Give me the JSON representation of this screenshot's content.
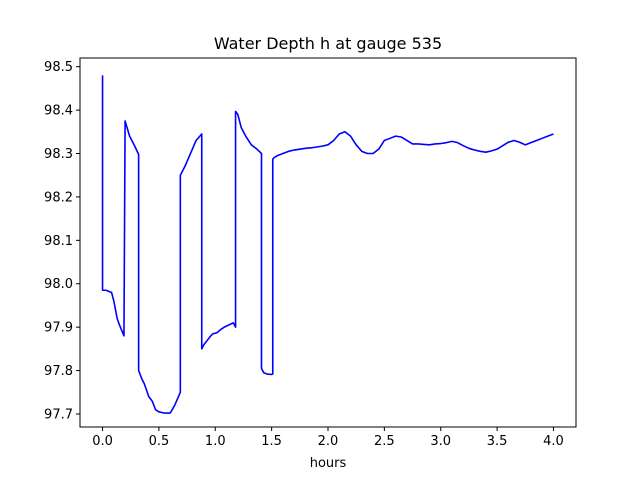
{
  "chart_data": {
    "type": "line",
    "title": "Water Depth h at gauge 535",
    "xlabel": "hours",
    "ylabel": "",
    "xlim": [
      -0.2,
      4.2
    ],
    "ylim": [
      97.67,
      98.52
    ],
    "xticks": [
      0.0,
      0.5,
      1.0,
      1.5,
      2.0,
      2.5,
      3.0,
      3.5,
      4.0
    ],
    "xtick_labels": [
      "0.0",
      "0.5",
      "1.0",
      "1.5",
      "2.0",
      "2.5",
      "3.0",
      "3.5",
      "4.0"
    ],
    "yticks": [
      97.7,
      97.8,
      97.9,
      98.0,
      98.1,
      98.2,
      98.3,
      98.4,
      98.5
    ],
    "ytick_labels": [
      "97.7",
      "97.8",
      "97.9",
      "98.0",
      "98.1",
      "98.2",
      "98.3",
      "98.4",
      "98.5"
    ],
    "grid": false,
    "line_color": "#0000ff",
    "series": [
      {
        "name": "h",
        "x": [
          0.0,
          0.0,
          0.03,
          0.08,
          0.1,
          0.13,
          0.15,
          0.19,
          0.2,
          0.2,
          0.24,
          0.28,
          0.32,
          0.32,
          0.35,
          0.37,
          0.39,
          0.41,
          0.44,
          0.47,
          0.5,
          0.55,
          0.6,
          0.64,
          0.69,
          0.69,
          0.69,
          0.73,
          0.78,
          0.83,
          0.88,
          0.88,
          0.88,
          0.9,
          0.93,
          0.96,
          0.98,
          1.0,
          1.02,
          1.05,
          1.08,
          1.12,
          1.16,
          1.17,
          1.18,
          1.18,
          1.2,
          1.23,
          1.27,
          1.32,
          1.37,
          1.41,
          1.41,
          1.41,
          1.43,
          1.46,
          1.5,
          1.51,
          1.51,
          1.52,
          1.55,
          1.6,
          1.65,
          1.7,
          1.75,
          1.8,
          1.85,
          1.9,
          1.95,
          2.0,
          2.05,
          2.1,
          2.15,
          2.2,
          2.25,
          2.3,
          2.35,
          2.4,
          2.45,
          2.5,
          2.55,
          2.6,
          2.65,
          2.7,
          2.75,
          2.8,
          2.85,
          2.9,
          2.95,
          3.0,
          3.05,
          3.1,
          3.15,
          3.2,
          3.25,
          3.3,
          3.35,
          3.4,
          3.45,
          3.5,
          3.55,
          3.6,
          3.65,
          3.7,
          3.75,
          3.8,
          3.85,
          3.9,
          3.95,
          4.0
        ],
        "y": [
          98.48,
          97.985,
          97.985,
          97.98,
          97.96,
          97.92,
          97.905,
          97.88,
          98.375,
          98.375,
          98.34,
          98.32,
          98.298,
          97.8,
          97.78,
          97.77,
          97.755,
          97.74,
          97.73,
          97.71,
          97.705,
          97.702,
          97.702,
          97.72,
          97.75,
          97.75,
          98.25,
          98.27,
          98.3,
          98.33,
          98.345,
          98.345,
          97.85,
          97.86,
          97.87,
          97.88,
          97.885,
          97.886,
          97.888,
          97.895,
          97.9,
          97.905,
          97.91,
          97.905,
          97.9,
          98.397,
          98.39,
          98.36,
          98.34,
          98.32,
          98.31,
          98.3,
          98.3,
          97.805,
          97.795,
          97.792,
          97.791,
          97.792,
          98.287,
          98.29,
          98.295,
          98.3,
          98.305,
          98.308,
          98.31,
          98.312,
          98.313,
          98.315,
          98.317,
          98.32,
          98.33,
          98.345,
          98.35,
          98.34,
          98.32,
          98.305,
          98.3,
          98.3,
          98.31,
          98.33,
          98.335,
          98.34,
          98.338,
          98.33,
          98.322,
          98.322,
          98.321,
          98.32,
          98.322,
          98.323,
          98.325,
          98.328,
          98.325,
          98.318,
          98.312,
          98.308,
          98.305,
          98.303,
          98.306,
          98.31,
          98.318,
          98.326,
          98.33,
          98.326,
          98.32,
          98.325,
          98.33,
          98.335,
          98.34,
          98.345
        ]
      }
    ]
  }
}
